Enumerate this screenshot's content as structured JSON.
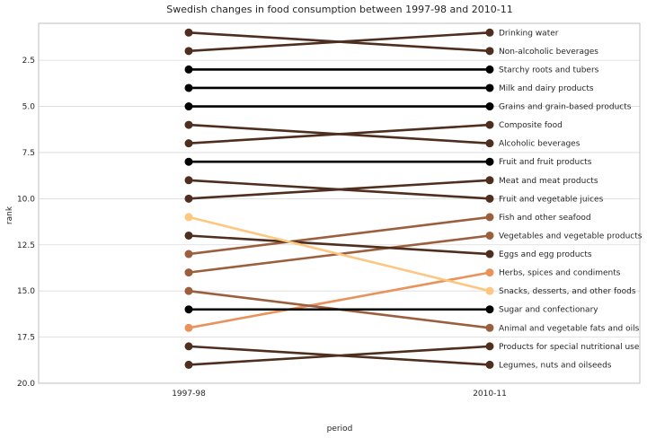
{
  "chart_data": {
    "type": "line",
    "title": "Swedish changes in food consumption between 1997-98 and 2010-11",
    "xlabel": "period",
    "ylabel": "rank",
    "x": [
      "1997-98",
      "2010-11"
    ],
    "ylim": [
      20.0,
      0.5
    ],
    "yticks": [
      "2.5",
      "5.0",
      "7.5",
      "10.0",
      "12.5",
      "15.0",
      "17.5",
      "20.0"
    ],
    "grid": true,
    "colors": {
      "same": "#000000",
      "moderate": "#4e2e1e",
      "larger": "#9b5f3e",
      "big": "#e8935b",
      "biggest": "#fdc681"
    },
    "series": [
      {
        "name": "Drinking water",
        "values": [
          2,
          1
        ],
        "color": "#4e2e1e"
      },
      {
        "name": "Non-alcoholic beverages",
        "values": [
          1,
          2
        ],
        "color": "#4e2e1e"
      },
      {
        "name": "Starchy roots and tubers",
        "values": [
          3,
          3
        ],
        "color": "#000000"
      },
      {
        "name": "Milk and dairy products",
        "values": [
          4,
          4
        ],
        "color": "#000000"
      },
      {
        "name": "Grains and grain-based products",
        "values": [
          5,
          5
        ],
        "color": "#000000"
      },
      {
        "name": "Composite food",
        "values": [
          7,
          6
        ],
        "color": "#4e2e1e"
      },
      {
        "name": "Alcoholic beverages",
        "values": [
          6,
          7
        ],
        "color": "#4e2e1e"
      },
      {
        "name": "Fruit and fruit products",
        "values": [
          8,
          8
        ],
        "color": "#000000"
      },
      {
        "name": "Meat and meat products",
        "values": [
          10,
          9
        ],
        "color": "#4e2e1e"
      },
      {
        "name": "Fruit and vegetable juices",
        "values": [
          9,
          10
        ],
        "color": "#4e2e1e"
      },
      {
        "name": "Fish and other seafood",
        "values": [
          13,
          11
        ],
        "color": "#9b5f3e"
      },
      {
        "name": "Vegetables and vegetable products",
        "values": [
          14,
          12
        ],
        "color": "#9b5f3e"
      },
      {
        "name": "Eggs and egg products",
        "values": [
          12,
          13
        ],
        "color": "#4e2e1e"
      },
      {
        "name": "Herbs, spices and condiments",
        "values": [
          17,
          14
        ],
        "color": "#e8935b"
      },
      {
        "name": "Snacks, desserts, and other foods",
        "values": [
          11,
          15
        ],
        "color": "#fdc681"
      },
      {
        "name": "Sugar and confectionary",
        "values": [
          16,
          16
        ],
        "color": "#000000"
      },
      {
        "name": "Animal and vegetable fats and oils",
        "values": [
          15,
          17
        ],
        "color": "#9b5f3e"
      },
      {
        "name": "Products for special nutritional use",
        "values": [
          19,
          18
        ],
        "color": "#4e2e1e"
      },
      {
        "name": "Legumes, nuts and oilseeds",
        "values": [
          18,
          19
        ],
        "color": "#4e2e1e"
      }
    ]
  }
}
